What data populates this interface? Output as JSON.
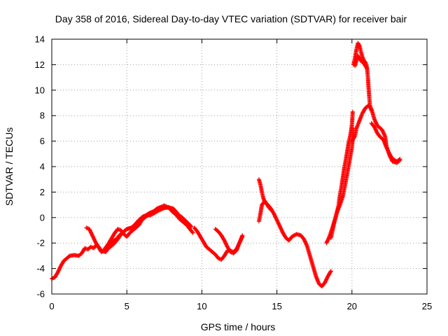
{
  "chart_data": {
    "type": "scatter",
    "title": "Day 358 of 2016, Sidereal Day-to-day VTEC variation (SDTVAR) for receiver bair",
    "xlabel": "GPS time / hours",
    "ylabel": "SDTVAR / TECUs",
    "xlim": [
      0,
      25
    ],
    "ylim": [
      -6,
      14
    ],
    "x_ticks": [
      0,
      5,
      10,
      15,
      20,
      25
    ],
    "y_ticks": [
      -6,
      -4,
      -2,
      0,
      2,
      4,
      6,
      8,
      10,
      12,
      14
    ],
    "grid": true,
    "marker": "+",
    "series": [
      {
        "color": "#ff0000",
        "segments": [
          [
            [
              0.0,
              -4.8
            ],
            [
              0.2,
              -4.7
            ],
            [
              0.4,
              -4.3
            ],
            [
              0.6,
              -3.8
            ],
            [
              0.8,
              -3.4
            ],
            [
              1.0,
              -3.2
            ],
            [
              1.2,
              -3.0
            ],
            [
              1.5,
              -2.95
            ],
            [
              1.8,
              -3.0
            ],
            [
              2.0,
              -2.8
            ],
            [
              2.2,
              -2.4
            ],
            [
              2.4,
              -2.5
            ],
            [
              2.6,
              -2.3
            ],
            [
              2.8,
              -2.4
            ],
            [
              3.0,
              -2.1
            ],
            [
              3.3,
              -2.6
            ],
            [
              3.6,
              -2.7
            ],
            [
              3.8,
              -2.3
            ],
            [
              4.0,
              -1.9
            ],
            [
              4.3,
              -1.7
            ],
            [
              4.5,
              -1.4
            ],
            [
              4.8,
              -1.1
            ],
            [
              5.0,
              -0.9
            ],
            [
              5.3,
              -0.8
            ],
            [
              5.5,
              -0.6
            ],
            [
              5.8,
              -0.2
            ],
            [
              6.0,
              0.0
            ],
            [
              6.3,
              0.2
            ],
            [
              6.5,
              0.35
            ],
            [
              6.8,
              0.5
            ],
            [
              7.0,
              0.7
            ],
            [
              7.3,
              0.85
            ],
            [
              7.5,
              0.95
            ],
            [
              7.8,
              0.75
            ],
            [
              8.0,
              0.5
            ],
            [
              8.3,
              0.2
            ],
            [
              8.5,
              -0.1
            ],
            [
              8.8,
              -0.4
            ],
            [
              9.0,
              -0.6
            ]
          ],
          [
            [
              2.3,
              -0.8
            ],
            [
              2.5,
              -0.9
            ],
            [
              2.7,
              -1.4
            ],
            [
              2.9,
              -1.9
            ],
            [
              3.1,
              -2.3
            ],
            [
              3.3,
              -2.7
            ],
            [
              3.5,
              -2.6
            ],
            [
              3.8,
              -2.4
            ],
            [
              4.1,
              -2.1
            ],
            [
              4.4,
              -1.7
            ],
            [
              4.7,
              -1.2
            ],
            [
              5.0,
              -0.9
            ],
            [
              5.3,
              -0.8
            ],
            [
              5.5,
              -0.75
            ],
            [
              5.7,
              -0.4
            ],
            [
              5.9,
              -0.1
            ],
            [
              6.1,
              0.1
            ],
            [
              6.3,
              0.15
            ],
            [
              6.6,
              0.2
            ],
            [
              6.9,
              0.4
            ],
            [
              7.2,
              0.6
            ],
            [
              7.5,
              0.75
            ],
            [
              7.8,
              0.8
            ],
            [
              8.1,
              0.7
            ],
            [
              8.4,
              0.3
            ],
            [
              8.7,
              -0.2
            ],
            [
              9.0,
              -0.6
            ],
            [
              9.2,
              -0.9
            ],
            [
              9.4,
              -1.2
            ]
          ],
          [
            [
              3.5,
              -2.5
            ],
            [
              3.8,
              -2.0
            ],
            [
              4.0,
              -1.6
            ],
            [
              4.2,
              -1.2
            ],
            [
              4.4,
              -0.9
            ],
            [
              4.6,
              -1.0
            ],
            [
              4.8,
              -1.3
            ],
            [
              5.0,
              -1.5
            ],
            [
              5.2,
              -1.2
            ],
            [
              5.5,
              -0.9
            ],
            [
              5.8,
              -0.6
            ],
            [
              6.0,
              -0.2
            ],
            [
              6.3,
              0.1
            ],
            [
              6.6,
              0.35
            ],
            [
              6.9,
              0.55
            ],
            [
              7.2,
              0.75
            ],
            [
              7.5,
              0.85
            ],
            [
              7.8,
              0.8
            ],
            [
              8.1,
              0.55
            ],
            [
              8.4,
              0.25
            ],
            [
              8.7,
              0.0
            ],
            [
              9.0,
              -0.35
            ],
            [
              9.3,
              -0.7
            ]
          ],
          [
            [
              9.5,
              -0.8
            ],
            [
              9.7,
              -1.1
            ],
            [
              9.9,
              -1.5
            ],
            [
              10.1,
              -1.9
            ],
            [
              10.3,
              -2.3
            ],
            [
              10.6,
              -2.6
            ],
            [
              10.9,
              -2.9
            ],
            [
              11.1,
              -3.2
            ],
            [
              11.3,
              -3.3
            ],
            [
              11.5,
              -3.0
            ],
            [
              11.7,
              -2.6
            ],
            [
              11.9,
              -2.6
            ],
            [
              12.1,
              -2.7
            ],
            [
              12.3,
              -2.5
            ],
            [
              12.5,
              -2.0
            ],
            [
              12.7,
              -1.5
            ]
          ],
          [
            [
              10.9,
              -0.9
            ],
            [
              11.1,
              -1.1
            ],
            [
              11.3,
              -1.4
            ],
            [
              11.5,
              -1.8
            ],
            [
              11.7,
              -2.3
            ],
            [
              11.9,
              -2.7
            ],
            [
              12.1,
              -2.8
            ],
            [
              12.3,
              -2.6
            ],
            [
              12.5,
              -2.0
            ],
            [
              12.7,
              -1.4
            ]
          ],
          [
            [
              13.8,
              3.0
            ],
            [
              13.9,
              2.6
            ],
            [
              14.0,
              2.0
            ],
            [
              14.1,
              1.5
            ],
            [
              14.2,
              1.2
            ],
            [
              14.4,
              1.0
            ],
            [
              14.6,
              0.7
            ],
            [
              14.8,
              0.3
            ],
            [
              15.0,
              -0.2
            ],
            [
              15.2,
              -0.7
            ],
            [
              15.4,
              -1.2
            ],
            [
              15.6,
              -1.6
            ],
            [
              15.8,
              -1.8
            ],
            [
              16.0,
              -1.5
            ],
            [
              16.3,
              -1.3
            ],
            [
              16.6,
              -1.4
            ],
            [
              16.8,
              -1.7
            ],
            [
              17.0,
              -2.2
            ],
            [
              17.2,
              -3.0
            ],
            [
              17.4,
              -3.8
            ],
            [
              17.6,
              -4.6
            ],
            [
              17.8,
              -5.2
            ],
            [
              18.0,
              -5.4
            ],
            [
              18.2,
              -5.1
            ],
            [
              18.4,
              -4.6
            ],
            [
              18.6,
              -4.2
            ]
          ],
          [
            [
              13.8,
              -0.3
            ],
            [
              13.9,
              0.3
            ],
            [
              14.0,
              1.0
            ],
            [
              14.2,
              1.3
            ],
            [
              14.4,
              0.9
            ],
            [
              14.6,
              0.6
            ]
          ],
          [
            [
              18.3,
              -2.0
            ],
            [
              18.5,
              -1.5
            ],
            [
              18.7,
              -0.8
            ],
            [
              18.9,
              0.0
            ],
            [
              19.1,
              0.9
            ],
            [
              19.2,
              1.8
            ],
            [
              19.3,
              2.4
            ],
            [
              19.4,
              3.2
            ],
            [
              19.5,
              4.0
            ],
            [
              19.6,
              4.6
            ],
            [
              19.7,
              5.3
            ],
            [
              19.8,
              6.0
            ],
            [
              19.9,
              6.5
            ],
            [
              20.0,
              7.3
            ],
            [
              20.05,
              8.3
            ]
          ],
          [
            [
              18.6,
              -1.6
            ],
            [
              18.8,
              -0.5
            ],
            [
              19.0,
              0.4
            ],
            [
              19.2,
              1.0
            ],
            [
              19.4,
              1.7
            ],
            [
              19.6,
              2.9
            ],
            [
              19.8,
              4.2
            ],
            [
              20.0,
              5.5
            ],
            [
              20.1,
              7.0
            ]
          ],
          [
            [
              20.0,
              6.0
            ],
            [
              20.2,
              6.4
            ],
            [
              20.3,
              7.0
            ],
            [
              20.5,
              7.6
            ],
            [
              20.7,
              8.2
            ],
            [
              20.9,
              8.6
            ],
            [
              21.1,
              8.8
            ],
            [
              21.3,
              8.5
            ],
            [
              21.5,
              7.7
            ],
            [
              21.7,
              7.2
            ],
            [
              22.0,
              6.9
            ],
            [
              22.2,
              6.4
            ],
            [
              22.3,
              5.6
            ],
            [
              22.5,
              4.9
            ],
            [
              22.7,
              4.4
            ],
            [
              23.0,
              4.3
            ],
            [
              23.2,
              4.5
            ]
          ],
          [
            [
              21.3,
              7.4
            ],
            [
              21.5,
              7.1
            ],
            [
              21.7,
              6.6
            ],
            [
              21.9,
              6.3
            ],
            [
              22.1,
              6.1
            ],
            [
              22.3,
              5.5
            ],
            [
              22.5,
              5.0
            ],
            [
              22.7,
              4.6
            ],
            [
              23.0,
              4.4
            ],
            [
              23.2,
              4.6
            ]
          ],
          [
            [
              20.1,
              12.0
            ],
            [
              20.2,
              12.5
            ],
            [
              20.3,
              13.2
            ],
            [
              20.4,
              13.7
            ],
            [
              20.5,
              13.5
            ],
            [
              20.6,
              13.0
            ],
            [
              20.7,
              12.6
            ],
            [
              20.8,
              12.3
            ],
            [
              20.9,
              12.2
            ],
            [
              21.0,
              11.8
            ],
            [
              21.05,
              11.2
            ],
            [
              21.1,
              10.3
            ],
            [
              21.15,
              9.5
            ],
            [
              21.2,
              8.8
            ],
            [
              21.3,
              8.4
            ]
          ],
          [
            [
              20.2,
              11.9
            ],
            [
              20.4,
              12.7
            ],
            [
              20.6,
              12.3
            ],
            [
              20.8,
              12.1
            ],
            [
              21.0,
              11.7
            ]
          ]
        ]
      }
    ]
  }
}
